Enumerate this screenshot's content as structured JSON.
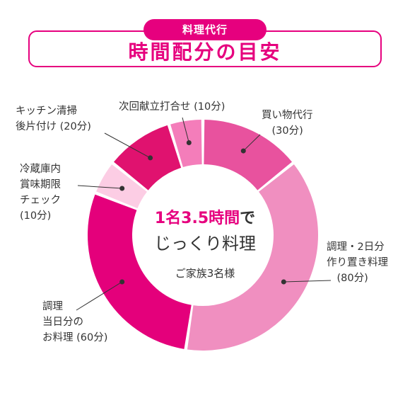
{
  "header": {
    "pill_label": "料理代行",
    "title": "時間配分の目安"
  },
  "center": {
    "highlight": "1名3.5時間",
    "highlight_suffix": "で",
    "line2": "じっくり料理",
    "sub": "ご家族3名様"
  },
  "chart_data": {
    "type": "pie",
    "unit": "分",
    "categories": [
      "買い物代行",
      "調理・2日分作り置き料理",
      "調理当日分のお料理",
      "冷蔵庫内賞味期限チェック",
      "キッチン清掃後片付け",
      "次回献立打合せ"
    ],
    "values": [
      30,
      80,
      60,
      10,
      20,
      10
    ],
    "colors": [
      "#e8529e",
      "#f08fc0",
      "#e4007b",
      "#fccde4",
      "#e0126f",
      "#f47dba"
    ],
    "labels": [
      "買い物代行\n　(30分)",
      "調理・2日分\n作り置き料理\n　(80分)",
      "調理\n当日分の\nお料理 (60分)",
      "冷蔵庫内\n賞味期限\nチェック\n(10分)",
      "キッチン清掃\n後片付け (20分)",
      "次回献立打合せ (10分)"
    ]
  }
}
